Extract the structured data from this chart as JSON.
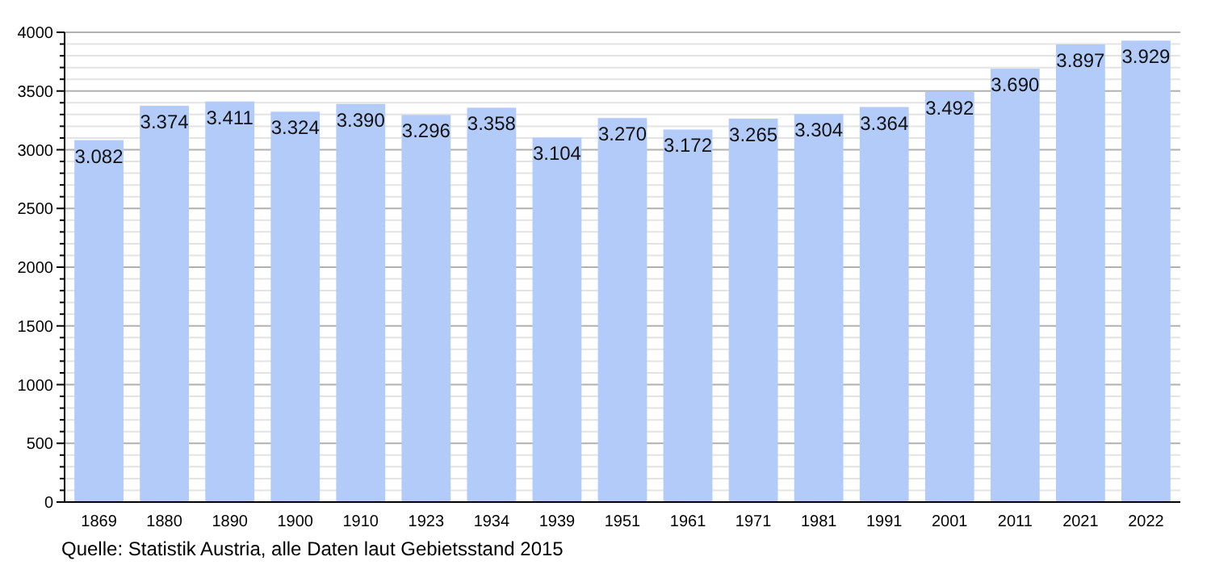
{
  "chart_data": {
    "type": "bar",
    "categories": [
      "1869",
      "1880",
      "1890",
      "1900",
      "1910",
      "1923",
      "1934",
      "1939",
      "1951",
      "1961",
      "1971",
      "1981",
      "1991",
      "2001",
      "2011",
      "2021",
      "2022"
    ],
    "values": [
      3082,
      3374,
      3411,
      3324,
      3390,
      3296,
      3358,
      3104,
      3270,
      3172,
      3265,
      3304,
      3364,
      3492,
      3690,
      3897,
      3929
    ],
    "value_labels": [
      "3.082",
      "3.374",
      "3.411",
      "3.324",
      "3.390",
      "3.296",
      "3.358",
      "3.104",
      "3.270",
      "3.172",
      "3.265",
      "3.304",
      "3.364",
      "3.492",
      "3.690",
      "3.897",
      "3.929"
    ],
    "color": "#b3cbf9",
    "ylim": [
      0,
      4000
    ],
    "yticks": [
      0,
      {
        "value": 100,
        "label": null
      },
      {
        "value": 200,
        "label": null
      },
      {
        "value": 300,
        "label": null
      },
      {
        "value": 400,
        "label": null
      },
      500,
      {
        "value": 600,
        "label": null
      },
      {
        "value": 700,
        "label": null
      },
      {
        "value": 800,
        "label": null
      },
      {
        "value": 900,
        "label": null
      },
      1000,
      {
        "value": 1100,
        "label": null
      },
      {
        "value": 1200,
        "label": null
      },
      {
        "value": 1300,
        "label": null
      },
      {
        "value": 1400,
        "label": null
      },
      1500,
      {
        "value": 1600,
        "label": null
      },
      {
        "value": 1700,
        "label": null
      },
      {
        "value": 1800,
        "label": null
      },
      {
        "value": 1900,
        "label": null
      },
      2000,
      {
        "value": 2100,
        "label": null
      },
      {
        "value": 2200,
        "label": null
      },
      {
        "value": 2300,
        "label": null
      },
      {
        "value": 2400,
        "label": null
      },
      2500,
      {
        "value": 2600,
        "label": null
      },
      {
        "value": 2700,
        "label": null
      },
      {
        "value": 2800,
        "label": null
      },
      {
        "value": 2900,
        "label": null
      },
      3000,
      {
        "value": 3100,
        "label": null
      },
      {
        "value": 3200,
        "label": null
      },
      {
        "value": 3300,
        "label": null
      },
      {
        "value": 3400,
        "label": null
      },
      3500,
      {
        "value": 3600,
        "label": null
      },
      {
        "value": 3700,
        "label": null
      },
      {
        "value": 3800,
        "label": null
      },
      {
        "value": 3900,
        "label": null
      },
      4000
    ],
    "grid": "y",
    "annotations": [
      "Quelle: Statistik Austria, alle Daten laut Gebietsstand 2015"
    ]
  }
}
